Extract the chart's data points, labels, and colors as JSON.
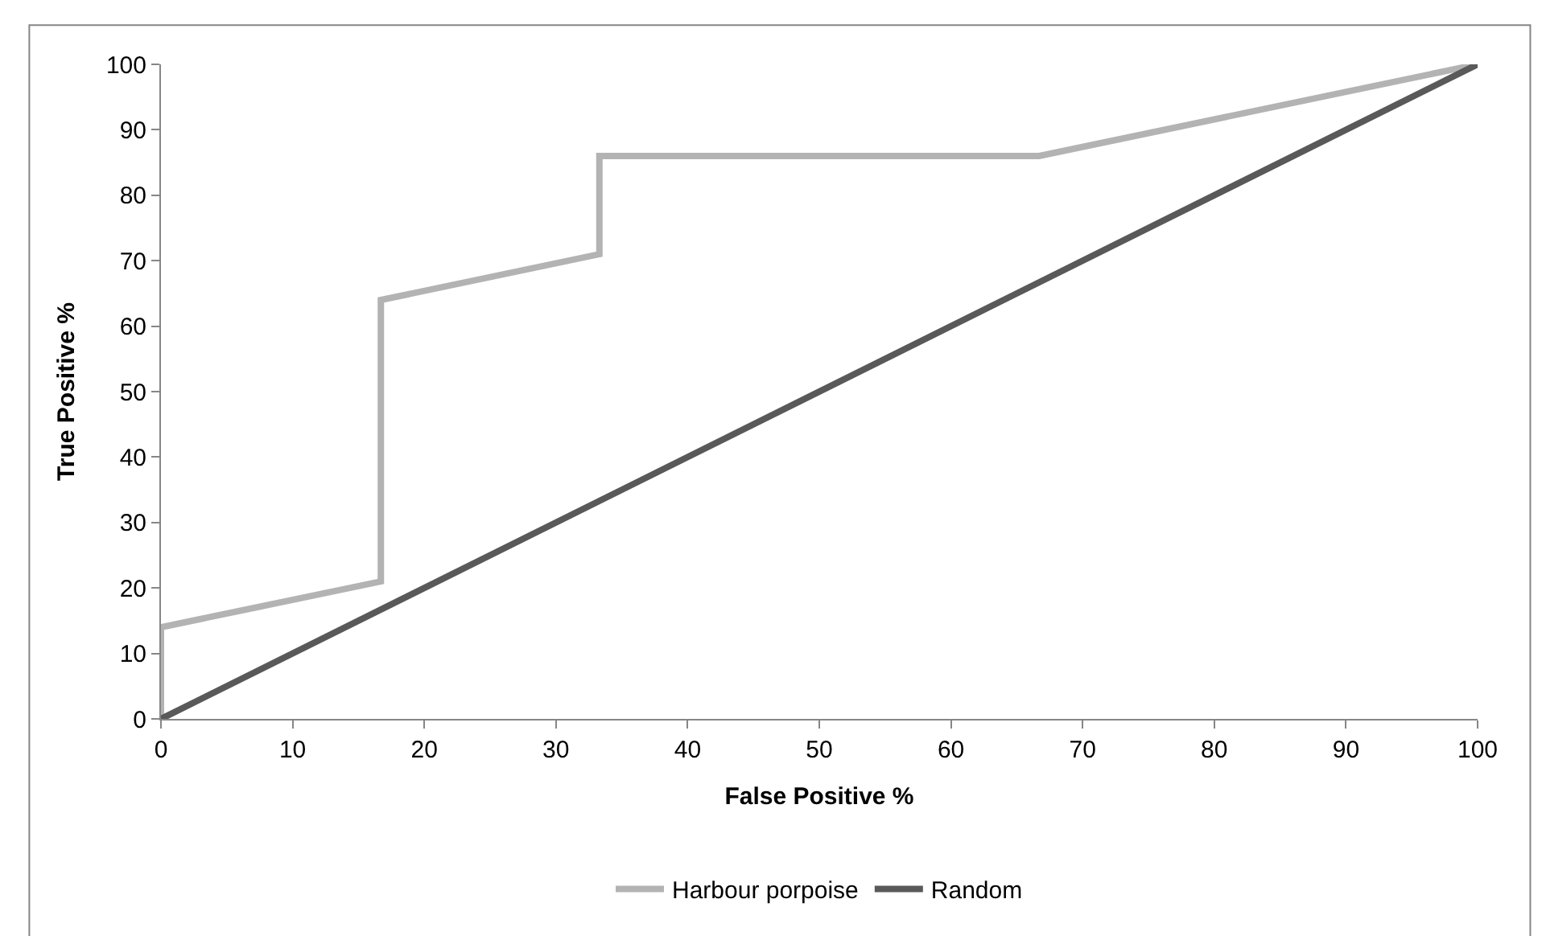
{
  "chart_data": {
    "type": "line",
    "xlabel": "False Positive %",
    "ylabel": "True Positive %",
    "xlim": [
      0,
      100
    ],
    "xticks": [
      0,
      10,
      20,
      30,
      40,
      50,
      60,
      70,
      80,
      90,
      100
    ],
    "ylim": [
      0,
      100
    ],
    "yticks": [
      0,
      10,
      20,
      30,
      40,
      50,
      60,
      70,
      80,
      90,
      100
    ],
    "series": [
      {
        "name": "Harbour porpoise",
        "color": "#b3b3b3",
        "x": [
          0,
          0,
          16.7,
          16.7,
          33.3,
          33.3,
          66.7,
          100
        ],
        "values": [
          0,
          14,
          21,
          64,
          71,
          86,
          86,
          100
        ]
      },
      {
        "name": "Random",
        "color": "#595959",
        "x": [
          0,
          100
        ],
        "values": [
          0,
          100
        ]
      }
    ],
    "grid": false,
    "legend": "bottom",
    "marker": "none",
    "line_style": "solid"
  }
}
